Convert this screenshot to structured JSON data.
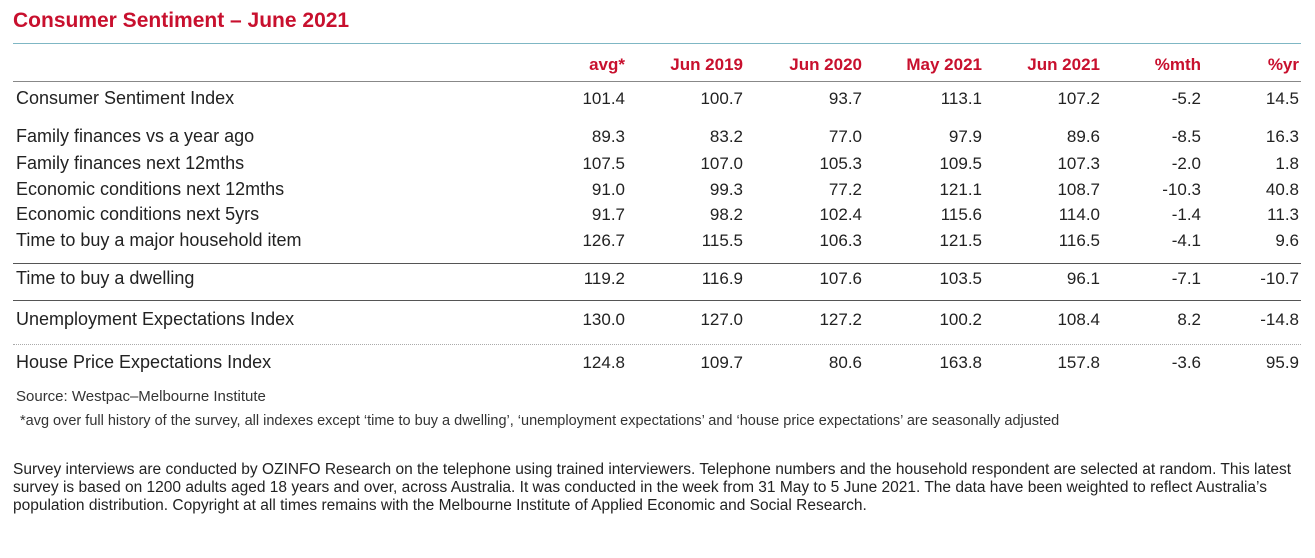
{
  "title": "Consumer Sentiment – June 2021",
  "columns": [
    "avg*",
    "Jun 2019",
    "Jun 2020",
    "May 2021",
    "Jun 2021",
    "%mth",
    "%yr"
  ],
  "rows": [
    {
      "label": "Consumer Sentiment Index",
      "values": [
        "101.4",
        "100.7",
        "93.7",
        "113.1",
        "107.2",
        "-5.2",
        "14.5"
      ]
    },
    {
      "label": "Family finances vs a year ago",
      "values": [
        "89.3",
        "83.2",
        "77.0",
        "97.9",
        "89.6",
        "-8.5",
        "16.3"
      ]
    },
    {
      "label": "Family finances next 12mths",
      "values": [
        "107.5",
        "107.0",
        "105.3",
        "109.5",
        "107.3",
        "-2.0",
        "1.8"
      ]
    },
    {
      "label": "Economic conditions next 12mths",
      "values": [
        "91.0",
        "99.3",
        "77.2",
        "121.1",
        "108.7",
        "-10.3",
        "40.8"
      ]
    },
    {
      "label": "Economic conditions next 5yrs",
      "values": [
        "91.7",
        "98.2",
        "102.4",
        "115.6",
        "114.0",
        "-1.4",
        "11.3"
      ]
    },
    {
      "label": "Time to buy a major household item",
      "values": [
        "126.7",
        "115.5",
        "106.3",
        "121.5",
        "116.5",
        "-4.1",
        "9.6"
      ]
    },
    {
      "label": "Time to buy a dwelling",
      "values": [
        "119.2",
        "116.9",
        "107.6",
        "103.5",
        "96.1",
        "-7.1",
        "-10.7"
      ]
    },
    {
      "label": "Unemployment Expectations Index",
      "values": [
        "130.0",
        "127.0",
        "127.2",
        "100.2",
        "108.4",
        "8.2",
        "-14.8"
      ]
    },
    {
      "label": "House Price Expectations Index",
      "values": [
        "124.8",
        "109.7",
        "80.6",
        "163.8",
        "157.8",
        "-3.6",
        "95.9"
      ]
    }
  ],
  "source": "Source: Westpac–Melbourne Institute",
  "footnote": "*avg over full history of the survey, all indexes except ‘time to buy a dwelling’, ‘unemployment expectations’ and ‘house price expectations’ are seasonally adjusted",
  "paragraph": "Survey interviews are conducted by OZINFO Research on the telephone using trained interviewers. Telephone numbers and the household respondent are selected at random. This latest survey is based on 1200 adults aged 18 years and over, across Australia. It was conducted in the week from 31 May to 5 June 2021. The data have been weighted to reflect Australia’s population distribution. Copyright at all times remains with the Melbourne Institute of Applied Economic and Social Research.",
  "colors": {
    "accent": "#c8102e",
    "rule": "#7fb7c4"
  }
}
